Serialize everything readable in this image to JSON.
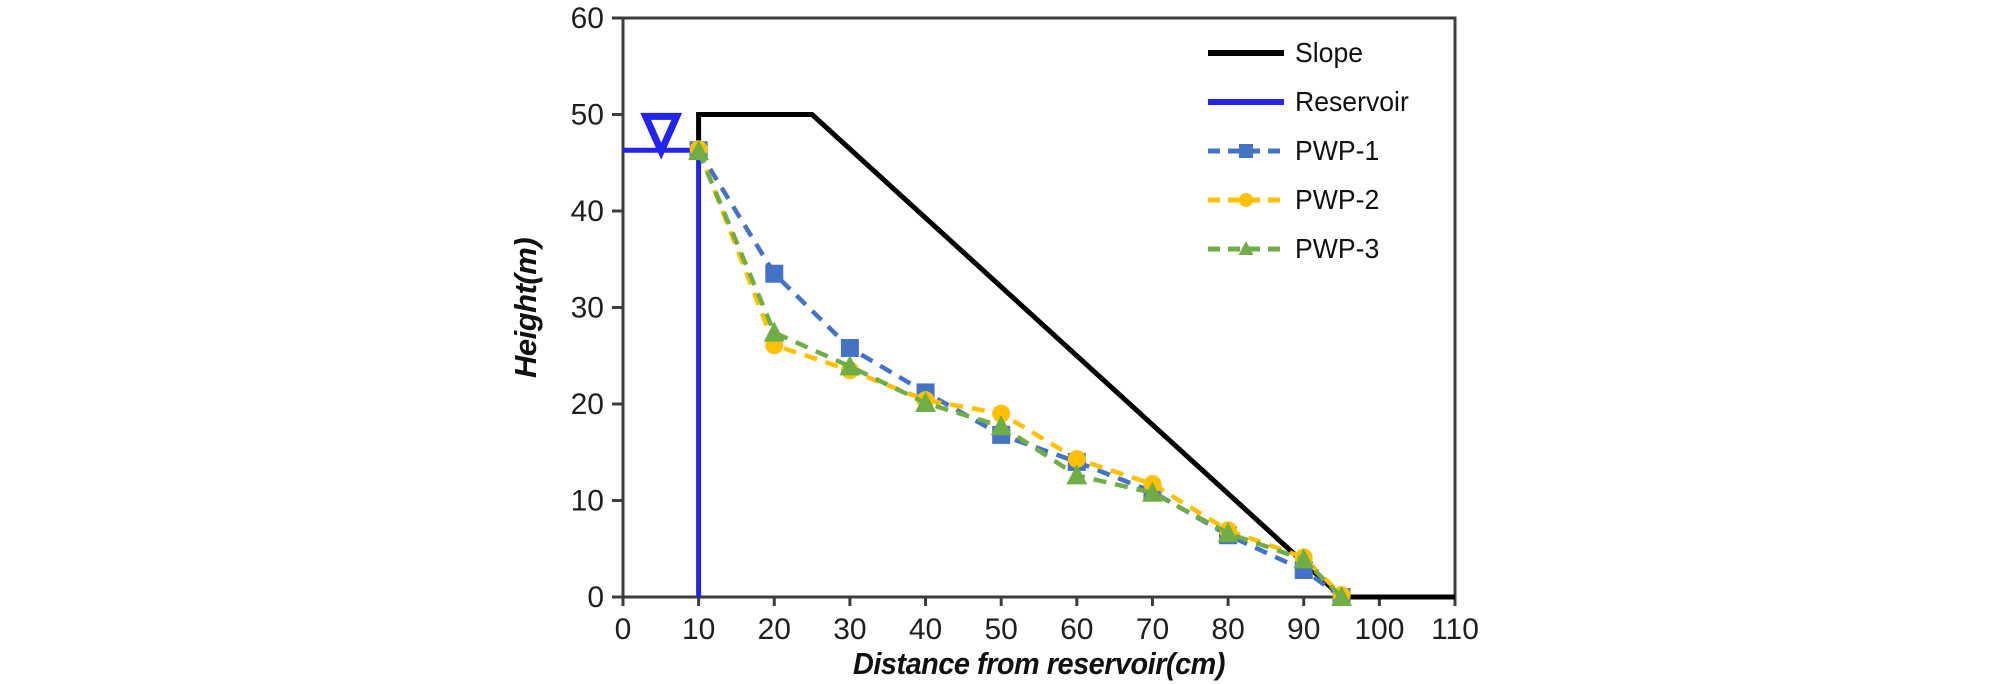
{
  "figure": {
    "background": "#ffffff",
    "axis_color": "#3c3c3c",
    "tick_text_color": "#1f1f1f"
  },
  "chart_data": {
    "type": "line",
    "title": "",
    "xlabel": "Distance from reservoir(cm)",
    "ylabel": "Height(m)",
    "xlim": [
      0,
      110
    ],
    "ylim": [
      0,
      60
    ],
    "xticks": [
      0,
      10,
      20,
      30,
      40,
      50,
      60,
      70,
      80,
      90,
      100,
      110
    ],
    "yticks": [
      0,
      10,
      20,
      30,
      40,
      50,
      60
    ],
    "grid": false,
    "legend_position": "top-right-inside",
    "series": [
      {
        "name": "Slope",
        "color": "#000000",
        "style": "solid",
        "marker": "none",
        "points": [
          [
            10,
            46.3
          ],
          [
            10,
            50
          ],
          [
            25,
            50
          ],
          [
            95,
            0
          ],
          [
            110,
            0
          ]
        ]
      },
      {
        "name": "Reservoir",
        "color": "#2323eb",
        "style": "solid",
        "marker": "none",
        "points": [
          [
            0,
            46.3
          ],
          [
            10,
            46.3
          ],
          [
            10,
            0
          ]
        ]
      },
      {
        "name": "PWP-1",
        "color": "#4472c4",
        "style": "dashed",
        "marker": "square",
        "points": [
          [
            10,
            46.3
          ],
          [
            20,
            33.5
          ],
          [
            30,
            25.8
          ],
          [
            40,
            21.2
          ],
          [
            50,
            16.8
          ],
          [
            60,
            14.0
          ],
          [
            70,
            10.9
          ],
          [
            80,
            6.4
          ],
          [
            90,
            2.8
          ],
          [
            95,
            0
          ]
        ]
      },
      {
        "name": "PWP-2",
        "color": "#ffc000",
        "style": "dashed",
        "marker": "circle",
        "points": [
          [
            10,
            46.4
          ],
          [
            20,
            26.1
          ],
          [
            30,
            23.5
          ],
          [
            40,
            20.4
          ],
          [
            50,
            19.0
          ],
          [
            60,
            14.3
          ],
          [
            70,
            11.7
          ],
          [
            80,
            6.9
          ],
          [
            90,
            4.1
          ],
          [
            95,
            0.2
          ]
        ]
      },
      {
        "name": "PWP-3",
        "color": "#70ad47",
        "style": "dashed",
        "marker": "triangle",
        "points": [
          [
            10,
            46.2
          ],
          [
            20,
            27.4
          ],
          [
            30,
            23.9
          ],
          [
            40,
            20.1
          ],
          [
            50,
            17.7
          ],
          [
            60,
            12.6
          ],
          [
            70,
            10.8
          ],
          [
            80,
            6.6
          ],
          [
            90,
            3.9
          ],
          [
            95,
            0
          ]
        ]
      }
    ],
    "annotations": {
      "water_level_symbol": {
        "shape": "inverted-triangle-outline",
        "color": "#2323eb",
        "x_center": 5.05,
        "x_left": 3.0,
        "x_right": 7.1,
        "y_top": 49.8,
        "y_apex": 46.2
      }
    }
  }
}
